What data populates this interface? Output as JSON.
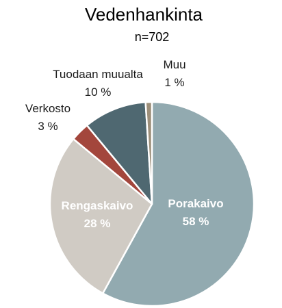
{
  "chart_data": {
    "type": "pie",
    "title": "Vedenhankinta",
    "subtitle": "n=702",
    "start_angle_deg": 0,
    "direction": "clockwise",
    "slices": [
      {
        "label": "Porakaivo",
        "value": 58,
        "value_text": "58 %",
        "color": "#92aab0",
        "label_inside": true
      },
      {
        "label": "Rengaskaivo",
        "value": 28,
        "value_text": "28 %",
        "color": "#d0cbc4",
        "label_inside": true
      },
      {
        "label": "Verkosto",
        "value": 3,
        "value_text": "3 %",
        "color": "#a3463c",
        "label_inside": false
      },
      {
        "label": "Tuodaan muualta",
        "value": 10,
        "value_text": "10 %",
        "color": "#4f6871",
        "label_inside": false
      },
      {
        "label": "Muu",
        "value": 1,
        "value_text": "1 %",
        "color": "#9d8f7a",
        "label_inside": false
      }
    ]
  }
}
